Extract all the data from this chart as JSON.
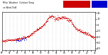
{
  "bg_color": "#ffffff",
  "temp_color": "#cc0000",
  "windchill_color": "#0000cc",
  "legend_temp_color": "#cc0000",
  "legend_wc_color": "#0000cc",
  "ylim": [
    -42,
    22
  ],
  "xlim": [
    0,
    1440
  ],
  "ytick_vals": [
    20,
    10,
    0,
    -10,
    -20,
    -30,
    -40
  ],
  "marker_size": 1.2,
  "grid_color": "#aaaaaa",
  "seed": 12
}
